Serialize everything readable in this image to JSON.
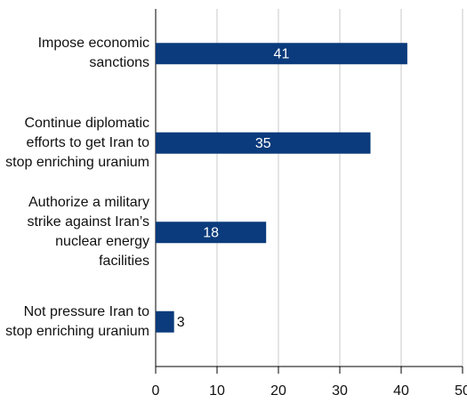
{
  "chart_data": {
    "type": "bar",
    "orientation": "horizontal",
    "categories": [
      "Impose economic sanctions",
      "Continue diplomatic efforts to get Iran to stop enriching uranium",
      "Authorize a military strike against Iran’s nuclear energy facilities",
      "Not pressure Iran to stop enriching uranium"
    ],
    "values": [
      41,
      35,
      18,
      3
    ],
    "color": "#0b3b7c",
    "xlim": [
      0,
      50
    ],
    "xticks": [
      0,
      10,
      20,
      30,
      40,
      50
    ],
    "grid": true
  }
}
